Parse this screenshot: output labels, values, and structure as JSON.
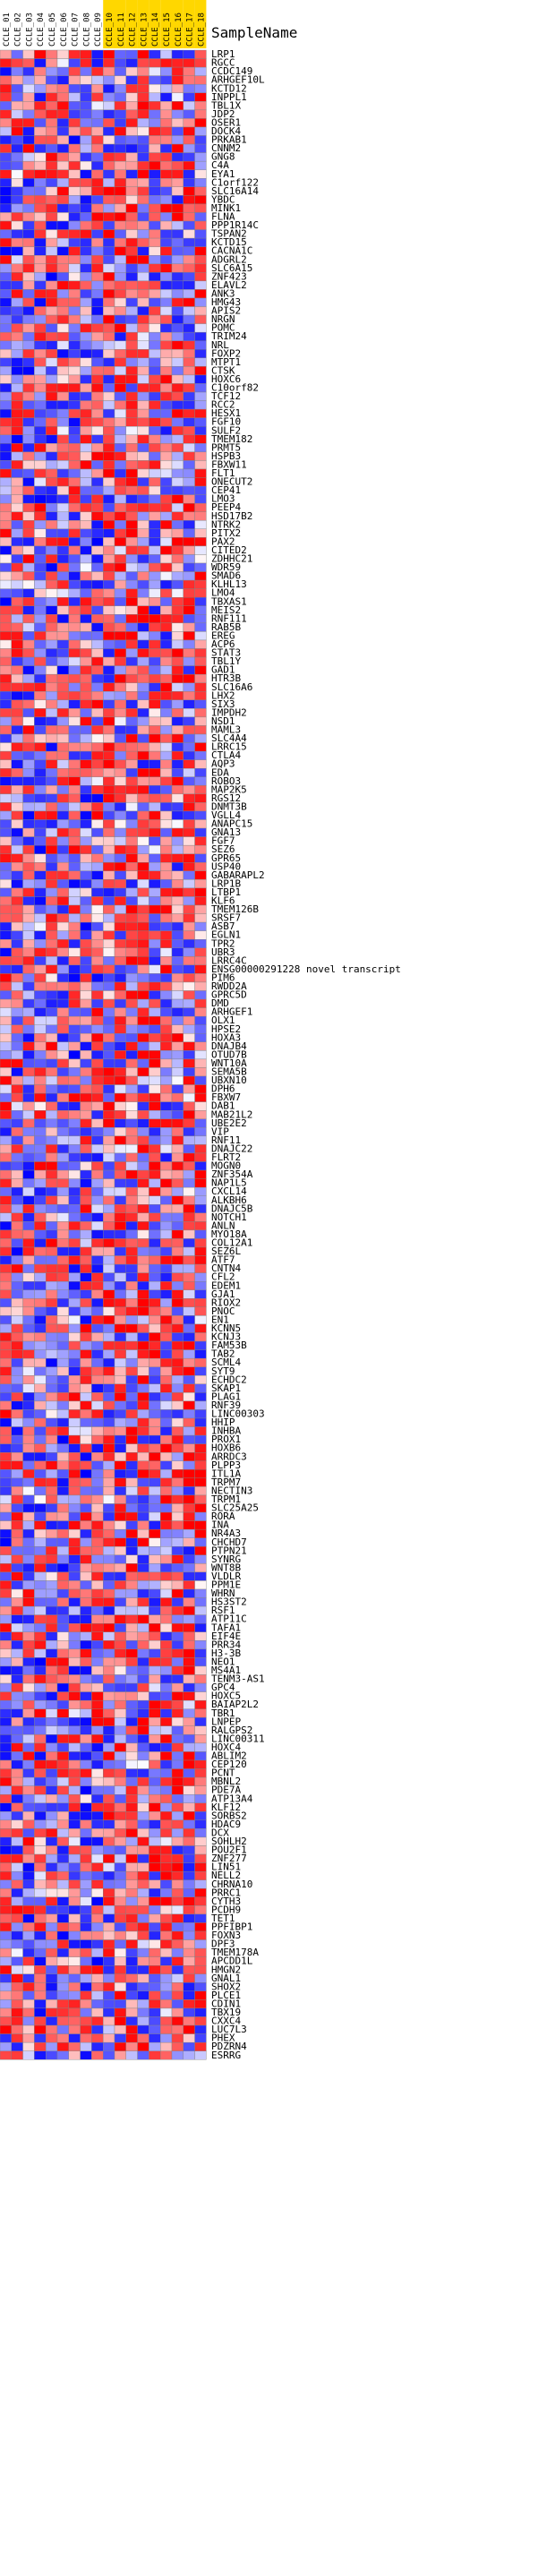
{
  "chart_data": {
    "type": "heatmap",
    "row_header": "SampleName",
    "colors": {
      "low": "#0000ff",
      "mid": "#ffffff",
      "high": "#ff0000",
      "highlight_column_bg": "#ffd700"
    },
    "samples": [
      "CCLE_01",
      "CCLE_02",
      "CCLE_03",
      "CCLE_04",
      "CCLE_05",
      "CCLE_06",
      "CCLE_07",
      "CCLE_08",
      "CCLE_09",
      "CCLE_10",
      "CCLE_11",
      "CCLE_12",
      "CCLE_13",
      "CCLE_14",
      "CCLE_15",
      "CCLE_16",
      "CCLE_17",
      "CCLE_18"
    ],
    "highlighted_samples": [
      9,
      10,
      11,
      12,
      13,
      14,
      15,
      16,
      17
    ],
    "genes": [
      "LRP1",
      "RGCC",
      "CCDC149",
      "ARHGEF10L",
      "KCTD12",
      "INPPL1",
      "TBL1X",
      "JDP2",
      "OSER1",
      "DOCK4",
      "PRKAB1",
      "CNNM2",
      "GNG8",
      "C4A",
      "EYA1",
      "C1orf122",
      "SLC16A14",
      "YBDC",
      "MINK1",
      "FLNA",
      "PPP1R14C",
      "TSPAN2",
      "KCTD15",
      "CACNA1C",
      "ADGRL2",
      "SLC6A15",
      "ZNF423",
      "ELAVL2",
      "ANK3",
      "HMG43",
      "APIS2",
      "NRGN",
      "POMC",
      "TRIM24",
      "NRL",
      "FOXP2",
      "MTPT1",
      "CTSK",
      "HOXC6",
      "C10orf82",
      "TCF12",
      "RCC2",
      "HESX1",
      "FGF10",
      "SULF2",
      "TMEM182",
      "PRMT5",
      "HSPB3",
      "FBXW11",
      "FLT1",
      "ONECUT2",
      "CEP41",
      "LMO3",
      "PEEP4",
      "HSD17B2",
      "NTRK2",
      "PITX2",
      "PAX2",
      "CITED2",
      "ZDHHC21",
      "WDR59",
      "SMAD6",
      "KLHL13",
      "LMO4",
      "TBXAS1",
      "MEIS2",
      "RNF111",
      "RAB5B",
      "EREG",
      "ACP6",
      "STAT3",
      "TBL1Y",
      "GAD1",
      "HTR3B",
      "SLC16A6",
      "LHX2",
      "SIX3",
      "IMPDH2",
      "NSD1",
      "MAML3",
      "SLC4A4",
      "LRRC15",
      "CTLA4",
      "AQP3",
      "EDA",
      "ROBO3",
      "MAP2K5",
      "RGS12",
      "DNMT3B",
      "VGLL4",
      "ANAPC15",
      "GNA13",
      "FGF7",
      "SEZ6",
      "GPR65",
      "USP40",
      "GABARAPL2",
      "LRP1B",
      "LTBP1",
      "KLF6",
      "TMEM126B",
      "SRSF7",
      "ASB7",
      "EGLN1",
      "TPR2",
      "UBR3",
      "LRRC4C",
      "ENSG00000291228",
      "PIM6",
      "RWDD2A",
      "GPRC5D",
      "DMD",
      "ARHGEF1",
      "OLX1",
      "HPSE2",
      "HOXA3",
      "DNAJB4",
      "OTUD7B",
      "WNT10A",
      "SEMA5B",
      "UBXN10",
      "DPH6",
      "FBXW7",
      "DAB1",
      "MAB21L2",
      "UBE2E2",
      "VIP",
      "RNF11",
      "DNAJC22",
      "FLRT2",
      "MOGN0",
      "ZNF354A",
      "NAP1L5",
      "CXCL14",
      "ALKBH6",
      "DNAJC5B",
      "NOTCH1",
      "ANLN",
      "MYO18A",
      "COL12A1",
      "SEZ6L",
      "ATF7",
      "CNTN4",
      "CFL2",
      "EDEM1",
      "GJA1",
      "RIOX2",
      "PNOC",
      "EN1",
      "KCNN5",
      "KCNJ3",
      "FAM53B",
      "TAB2",
      "SCML4",
      "SYT9",
      "ECHDC2",
      "SKAP1",
      "PLAG1",
      "RNF39",
      "LINC00303",
      "HHIP",
      "INHBA",
      "PROX1",
      "HOXB6",
      "ARRDC3",
      "PLPP3",
      "ITL1A",
      "TRPM7",
      "NECTIN3",
      "TRPM1",
      "SLC25A25",
      "RORA",
      "INA",
      "NR4A3",
      "CHCHD7",
      "PTPN21",
      "SYNRG",
      "WNT8B",
      "VLDLR",
      "PPM1E",
      "WHRN",
      "HS3ST2",
      "RSF1",
      "ATP11C",
      "TAFA1",
      "EIF4E",
      "PRR34",
      "H3-3B",
      "NEO1",
      "MS4A1",
      "TENM3-AS1",
      "GPC4",
      "HOXC5",
      "BAIAP2L2",
      "TBR1",
      "LNPEP",
      "RALGPS2",
      "LINC00311",
      "HOXC4",
      "ABLIM2",
      "CEP120",
      "PCNT",
      "MBNL2",
      "PDE7A",
      "ATP13A4",
      "KLF12",
      "SORBS2",
      "HDAC9",
      "DCX",
      "SOHLH2",
      "POU2F1",
      "ZNF277",
      "LIN51",
      "NELL2",
      "CHRNA10",
      "PRRC1",
      "CYTH3",
      "PCDH9",
      "TET1",
      "PPFIBP1",
      "FOXN3",
      "DPF3",
      "TMEM178A",
      "APCDD1L",
      "HMGN2",
      "GNAL1",
      "SHOX2",
      "PLCE1",
      "CDIN1",
      "TBX19",
      "CXXC4",
      "LUC7L3",
      "PHEX",
      "PDZRN4",
      "ESRRG"
    ],
    "annotations": {
      "ENSG00000291228": "ENSG00000291228 novel transcript"
    },
    "seed": 7
  }
}
